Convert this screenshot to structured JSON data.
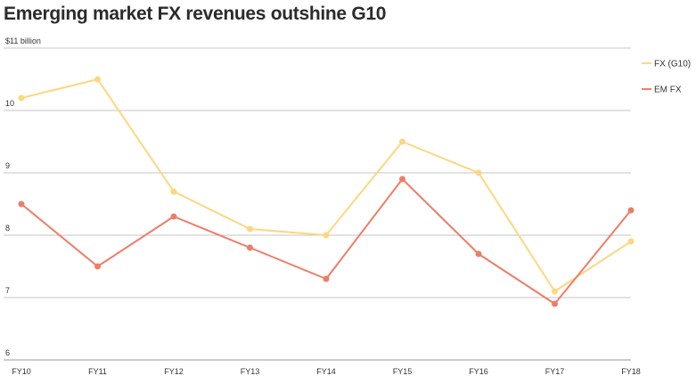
{
  "chart_data": {
    "type": "line",
    "title": "Emerging market FX revenues outshine G10",
    "ylabel": "$11 billion",
    "xlabel": "",
    "categories": [
      "FY10",
      "FY11",
      "FY12",
      "FY13",
      "FY14",
      "FY15",
      "FY16",
      "FY17",
      "FY18"
    ],
    "ylim": [
      6,
      11
    ],
    "yticks": [
      {
        "value": 11,
        "label": "$11 billion"
      },
      {
        "value": 10,
        "label": "10"
      },
      {
        "value": 9,
        "label": "9"
      },
      {
        "value": 8,
        "label": "8"
      },
      {
        "value": 7,
        "label": "7"
      },
      {
        "value": 6,
        "label": "6"
      }
    ],
    "grid": true,
    "legend_position": "top-right",
    "series": [
      {
        "name": "FX (G10)",
        "color": "#fcd77f",
        "values": [
          10.2,
          10.5,
          8.7,
          8.1,
          8.0,
          9.5,
          9.0,
          7.1,
          7.9
        ]
      },
      {
        "name": "EM FX",
        "color": "#ed7d67",
        "values": [
          8.5,
          7.5,
          8.3,
          7.8,
          7.3,
          8.9,
          7.7,
          6.9,
          8.4
        ]
      }
    ]
  }
}
